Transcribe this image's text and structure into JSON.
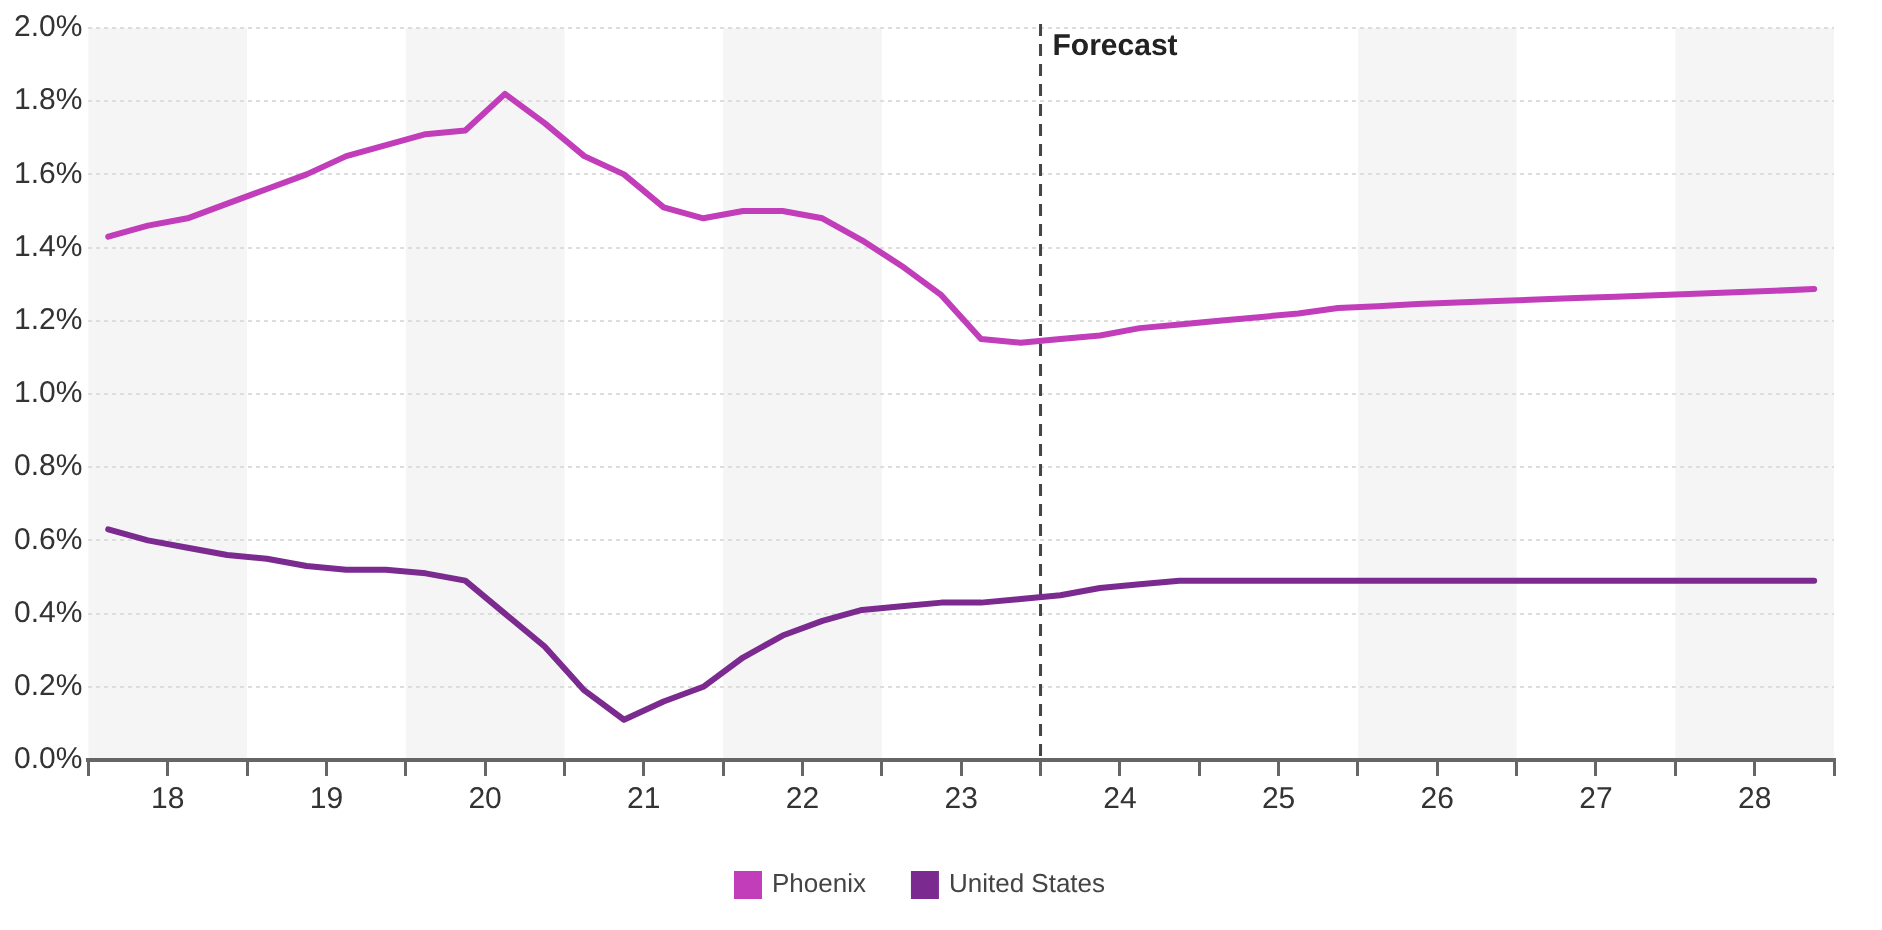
{
  "chart_data": {
    "type": "line",
    "x": [
      17.625,
      17.875,
      18.125,
      18.375,
      18.625,
      18.875,
      19.125,
      19.375,
      19.625,
      19.875,
      20.125,
      20.375,
      20.625,
      20.875,
      21.125,
      21.375,
      21.625,
      21.875,
      22.125,
      22.375,
      22.625,
      22.875,
      23.125,
      23.375,
      23.625,
      23.875,
      24.125,
      24.375,
      24.625,
      24.875,
      25.125,
      25.375,
      25.625,
      25.875,
      26.125,
      26.375,
      26.625,
      26.875,
      27.125,
      27.375,
      27.625,
      27.875,
      28.125,
      28.375
    ],
    "series": [
      {
        "name": "Phoenix",
        "color": "#c13db9",
        "values": [
          1.43,
          1.46,
          1.48,
          1.52,
          1.56,
          1.6,
          1.65,
          1.68,
          1.71,
          1.72,
          1.82,
          1.74,
          1.65,
          1.6,
          1.51,
          1.48,
          1.5,
          1.5,
          1.48,
          1.42,
          1.35,
          1.27,
          1.15,
          1.14,
          1.15,
          1.16,
          1.18,
          1.19,
          1.2,
          1.21,
          1.22,
          1.235,
          1.24,
          1.246,
          1.25,
          1.254,
          1.258,
          1.262,
          1.266,
          1.27,
          1.274,
          1.278,
          1.282,
          1.287
        ]
      },
      {
        "name": "United States",
        "color": "#7b2a8f",
        "values": [
          0.63,
          0.6,
          0.58,
          0.56,
          0.55,
          0.53,
          0.52,
          0.52,
          0.51,
          0.49,
          0.4,
          0.31,
          0.19,
          0.11,
          0.16,
          0.2,
          0.28,
          0.34,
          0.38,
          0.41,
          0.42,
          0.43,
          0.43,
          0.44,
          0.45,
          0.47,
          0.48,
          0.49,
          0.49,
          0.49,
          0.49,
          0.49,
          0.49,
          0.49,
          0.49,
          0.49,
          0.49,
          0.49,
          0.49,
          0.49,
          0.49,
          0.49,
          0.49,
          0.49
        ]
      }
    ],
    "xlim": [
      17.5,
      28.5
    ],
    "xticks": [
      {
        "value": 17.5,
        "label": null
      },
      18,
      {
        "value": 18.5,
        "label": null
      },
      19,
      {
        "value": 19.5,
        "label": null
      },
      20,
      {
        "value": 20.5,
        "label": null
      },
      21,
      {
        "value": 21.5,
        "label": null
      },
      22,
      {
        "value": 22.5,
        "label": null
      },
      23,
      {
        "value": 23.5,
        "label": null
      },
      24,
      {
        "value": 24.5,
        "label": null
      },
      25,
      {
        "value": 25.5,
        "label": null
      },
      26,
      {
        "value": 26.5,
        "label": null
      },
      27,
      {
        "value": 27.5,
        "label": null
      },
      28,
      {
        "value": 28.5,
        "label": null
      }
    ],
    "ylim": [
      0,
      2
    ],
    "yticks": [
      {
        "value": 0,
        "label": "0.0%"
      },
      {
        "value": 0.2,
        "label": "0.2%"
      },
      {
        "value": 0.4,
        "label": "0.4%"
      },
      {
        "value": 0.6,
        "label": "0.6%"
      },
      {
        "value": 0.8,
        "label": "0.8%"
      },
      {
        "value": 1,
        "label": "1.0%"
      },
      {
        "value": 1.2,
        "label": "1.2%"
      },
      {
        "value": 1.4,
        "label": "1.4%"
      },
      {
        "value": 1.6,
        "label": "1.6%"
      },
      {
        "value": 1.8,
        "label": "1.8%"
      },
      {
        "value": 2,
        "label": "2.0%"
      }
    ],
    "ref_lines": [
      {
        "axis": "x",
        "value": 23.5,
        "label": "Forecast",
        "color": "#444444",
        "line_style": "dashed"
      }
    ],
    "bands": [
      {
        "axis": "x",
        "from": 17.5,
        "to": 18.5,
        "color": "#f5f5f5"
      },
      {
        "axis": "x",
        "from": 19.5,
        "to": 20.5,
        "color": "#f5f5f5"
      },
      {
        "axis": "x",
        "from": 21.5,
        "to": 22.5,
        "color": "#f5f5f5"
      },
      {
        "axis": "x",
        "from": 25.5,
        "to": 26.5,
        "color": "#f5f5f5"
      },
      {
        "axis": "x",
        "from": 27.5,
        "to": 28.5,
        "color": "#f5f5f5"
      }
    ],
    "grid": "y",
    "legend": "bottom",
    "marker": "none",
    "line_style": "solid"
  }
}
